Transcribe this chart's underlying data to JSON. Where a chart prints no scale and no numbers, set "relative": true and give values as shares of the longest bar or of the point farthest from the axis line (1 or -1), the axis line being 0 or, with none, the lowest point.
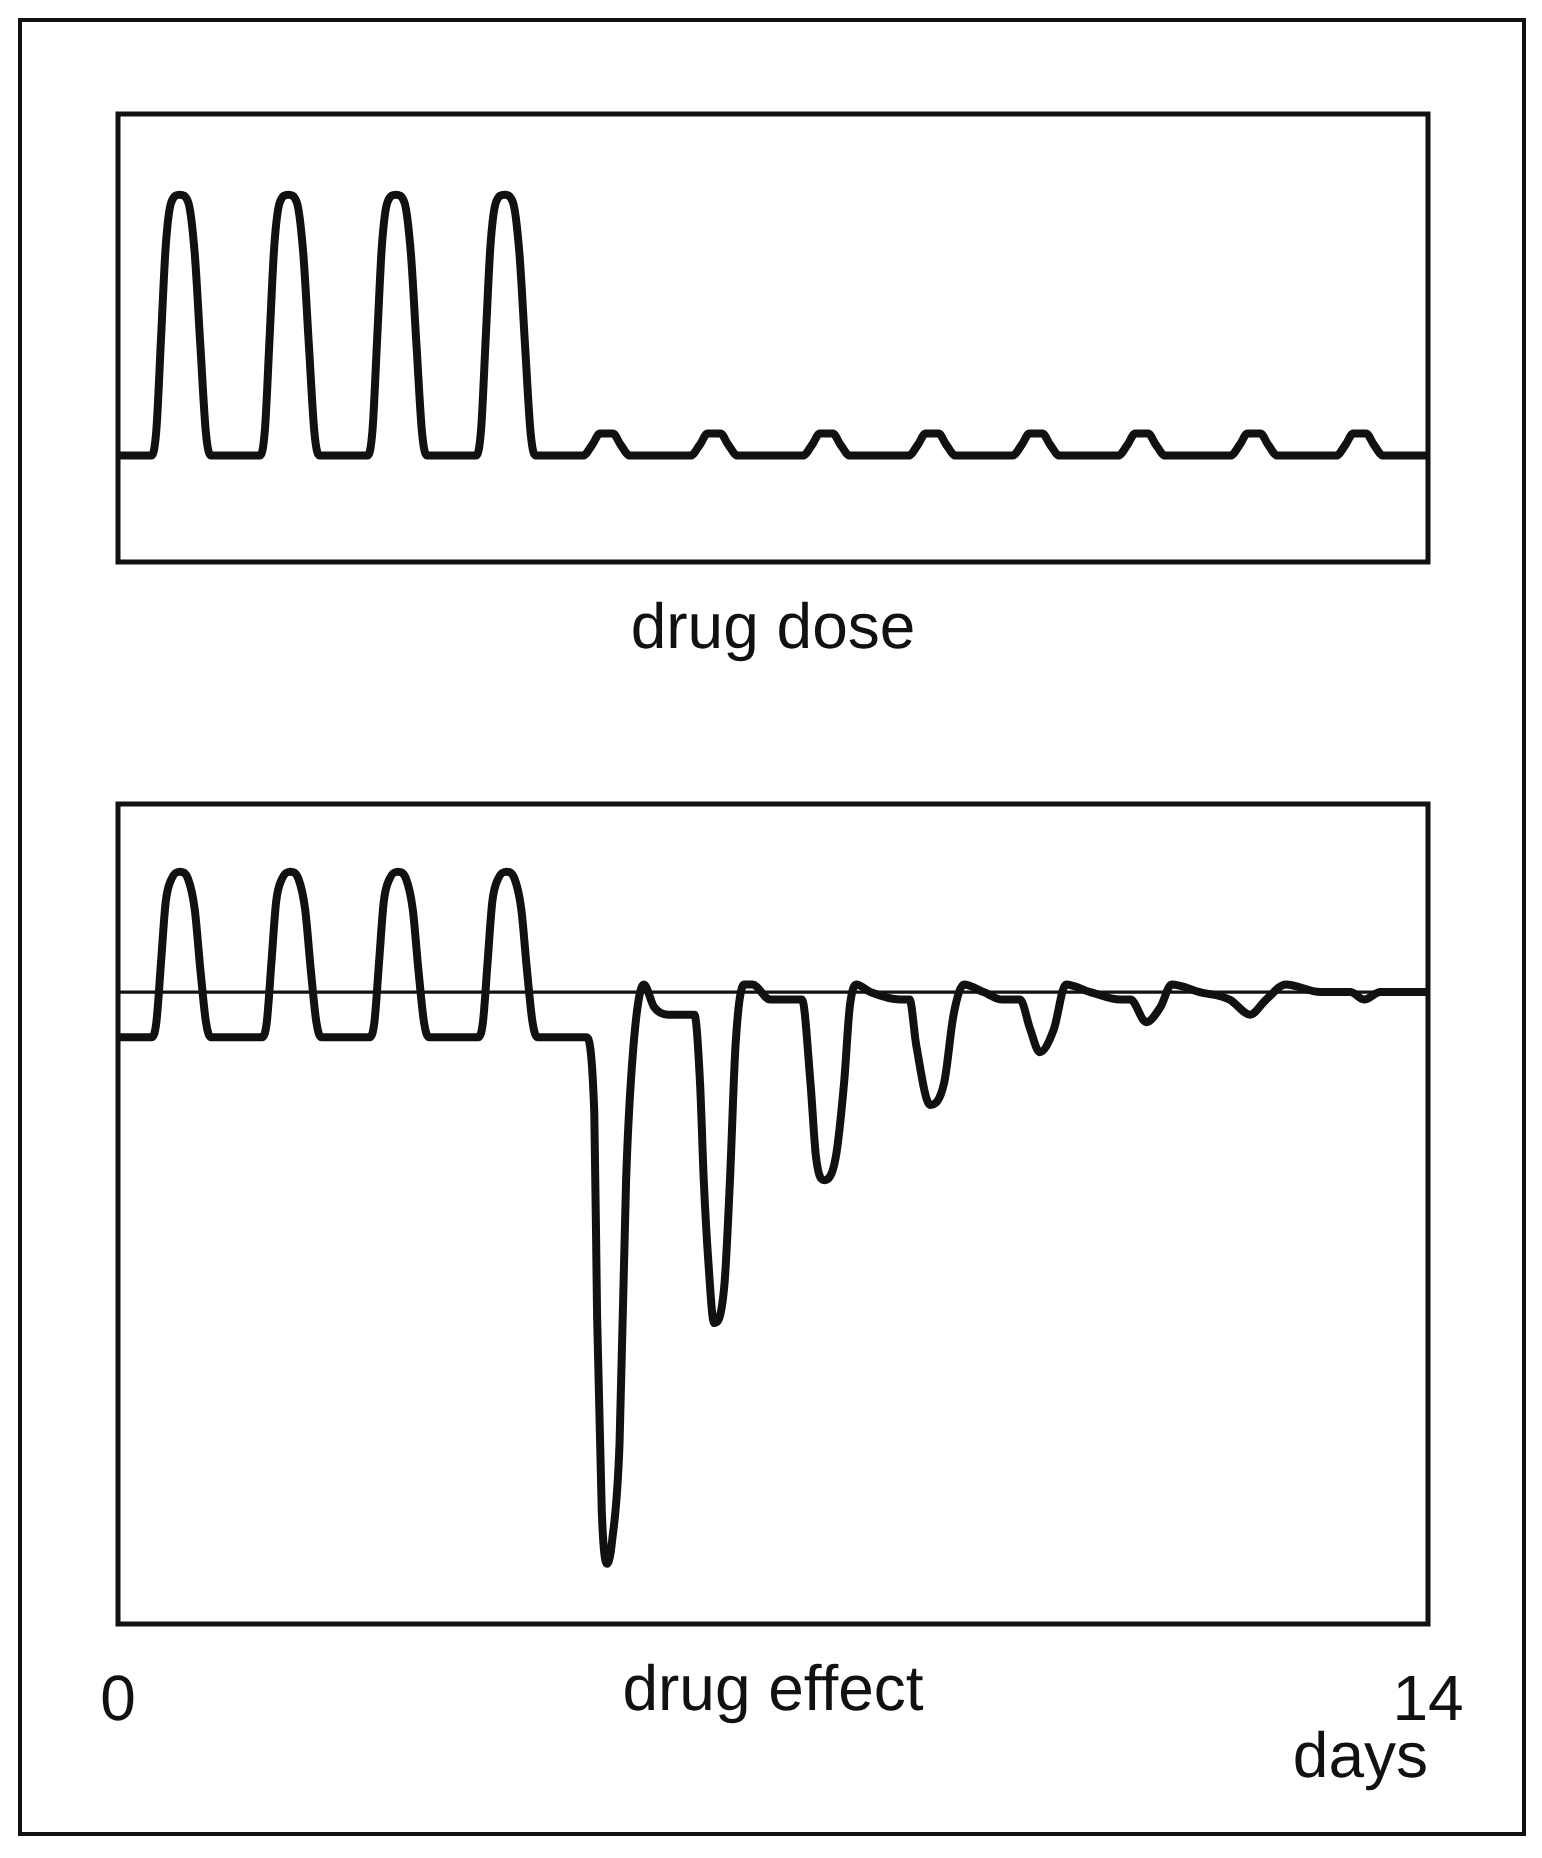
{
  "chart_data": [
    {
      "type": "line",
      "title": "drug dose",
      "relative": true,
      "xlim": [
        0,
        14
      ],
      "tick_labels": false,
      "color": "#111111",
      "x": [
        0,
        0.36,
        0.41,
        0.46,
        0.51,
        0.57,
        0.66,
        0.75,
        0.82,
        0.88,
        0.94,
        0.99,
        1.52,
        1.57,
        1.62,
        1.67,
        1.73,
        1.82,
        1.91,
        1.98,
        2.04,
        2.1,
        2.15,
        2.67,
        2.72,
        2.77,
        2.82,
        2.88,
        2.97,
        3.06,
        3.13,
        3.19,
        3.25,
        3.3,
        3.83,
        3.88,
        3.93,
        3.98,
        4.04,
        4.13,
        4.22,
        4.29,
        4.35,
        4.41,
        4.46,
        4.97,
        5.07,
        5.15,
        5.29,
        5.37,
        5.47,
        6.12,
        6.22,
        6.3,
        6.44,
        6.52,
        6.62,
        7.32,
        7.42,
        7.5,
        7.64,
        7.72,
        7.82,
        8.45,
        8.55,
        8.63,
        8.77,
        8.85,
        8.95,
        9.56,
        9.66,
        9.74,
        9.88,
        9.96,
        10.06,
        10.69,
        10.79,
        10.87,
        11.01,
        11.09,
        11.19,
        11.89,
        11.99,
        12.07,
        12.21,
        12.29,
        12.39,
        13.02,
        13.12,
        13.2,
        13.34,
        13.42,
        13.52,
        14
      ],
      "values": [
        0.29,
        0.29,
        0.36,
        0.61,
        0.86,
        0.98,
        1,
        0.98,
        0.84,
        0.59,
        0.35,
        0.29,
        0.29,
        0.36,
        0.61,
        0.86,
        0.98,
        1,
        0.98,
        0.84,
        0.59,
        0.35,
        0.29,
        0.29,
        0.36,
        0.61,
        0.86,
        0.98,
        1,
        0.98,
        0.84,
        0.59,
        0.35,
        0.29,
        0.29,
        0.36,
        0.61,
        0.86,
        0.98,
        1,
        0.98,
        0.84,
        0.59,
        0.35,
        0.29,
        0.29,
        0.32,
        0.35,
        0.35,
        0.32,
        0.29,
        0.29,
        0.32,
        0.35,
        0.35,
        0.32,
        0.29,
        0.29,
        0.32,
        0.35,
        0.35,
        0.32,
        0.29,
        0.29,
        0.32,
        0.35,
        0.35,
        0.32,
        0.29,
        0.29,
        0.32,
        0.35,
        0.35,
        0.32,
        0.29,
        0.29,
        0.32,
        0.35,
        0.35,
        0.32,
        0.29,
        0.29,
        0.32,
        0.35,
        0.35,
        0.32,
        0.29,
        0.29,
        0.32,
        0.35,
        0.35,
        0.32,
        0.29,
        0.29
      ]
    },
    {
      "type": "line",
      "title": "drug effect",
      "xlabel": "days",
      "relative": true,
      "xlim": [
        0,
        14
      ],
      "xticks": [
        0,
        14
      ],
      "tick_labels": "x",
      "color": "#111111",
      "ref_lines": [
        {
          "axis": "y",
          "value": 0.84
        }
      ],
      "x": [
        0,
        0.36,
        0.41,
        0.46,
        0.51,
        0.57,
        0.66,
        0.75,
        0.82,
        0.88,
        0.94,
        0.99,
        1.54,
        1.59,
        1.64,
        1.69,
        1.75,
        1.84,
        1.93,
        2.0,
        2.06,
        2.12,
        2.17,
        2.69,
        2.74,
        2.79,
        2.84,
        2.9,
        2.99,
        3.08,
        3.15,
        3.21,
        3.27,
        3.32,
        3.85,
        3.9,
        3.95,
        4.0,
        4.06,
        4.15,
        4.24,
        4.31,
        4.37,
        4.43,
        4.48,
        5.0,
        5.09,
        5.12,
        5.17,
        5.23,
        5.28,
        5.36,
        5.43,
        5.51,
        5.62,
        5.73,
        5.88,
        6.16,
        6.22,
        6.26,
        6.31,
        6.37,
        6.48,
        6.54,
        6.6,
        6.69,
        6.78,
        6.97,
        7.31,
        7.4,
        7.46,
        7.55,
        7.67,
        7.76,
        7.82,
        7.89,
        8.04,
        8.36,
        8.46,
        8.53,
        8.68,
        8.83,
        8.93,
        9.04,
        9.25,
        9.45,
        9.64,
        9.75,
        9.85,
        10.0,
        10.13,
        10.39,
        10.71,
        10.82,
        10.99,
        11.14,
        11.26,
        11.56,
        11.88,
        12.1,
        12.27,
        12.48,
        12.85,
        13.17,
        13.32,
        13.49,
        14
      ],
      "values": [
        0.78,
        0.78,
        0.8,
        0.88,
        0.96,
        0.99,
        1,
        0.99,
        0.95,
        0.87,
        0.8,
        0.78,
        0.78,
        0.8,
        0.88,
        0.96,
        0.99,
        1,
        0.99,
        0.95,
        0.87,
        0.8,
        0.78,
        0.78,
        0.8,
        0.88,
        0.96,
        0.99,
        1,
        0.99,
        0.95,
        0.87,
        0.8,
        0.78,
        0.78,
        0.8,
        0.88,
        0.96,
        0.99,
        1,
        0.99,
        0.95,
        0.87,
        0.8,
        0.78,
        0.78,
        0.68,
        0.41,
        0.15,
        0.08,
        0.11,
        0.24,
        0.59,
        0.77,
        0.85,
        0.82,
        0.81,
        0.81,
        0.72,
        0.59,
        0.48,
        0.4,
        0.45,
        0.59,
        0.77,
        0.85,
        0.85,
        0.83,
        0.83,
        0.72,
        0.62,
        0.59,
        0.62,
        0.72,
        0.82,
        0.85,
        0.84,
        0.83,
        0.83,
        0.77,
        0.69,
        0.72,
        0.81,
        0.85,
        0.84,
        0.83,
        0.83,
        0.79,
        0.76,
        0.79,
        0.85,
        0.84,
        0.83,
        0.83,
        0.8,
        0.82,
        0.85,
        0.84,
        0.83,
        0.81,
        0.83,
        0.85,
        0.84,
        0.84,
        0.83,
        0.84,
        0.84
      ]
    }
  ]
}
